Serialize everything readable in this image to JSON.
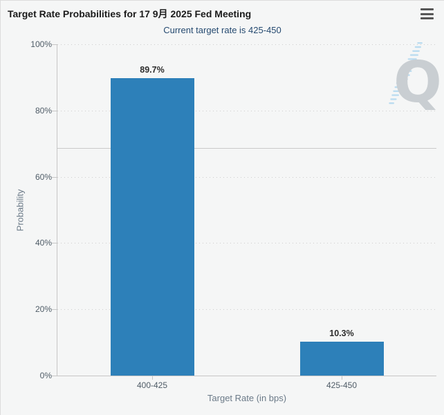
{
  "chart_data": {
    "type": "bar",
    "title": "Target Rate Probabilities for 17 9月 2025 Fed Meeting",
    "subtitle": "Current target rate is 425-450",
    "categories": [
      "400-425",
      "425-450"
    ],
    "values": [
      89.7,
      10.3
    ],
    "data_labels": [
      "89.7%",
      "10.3%"
    ],
    "xlabel": "Target Rate (in bps)",
    "ylabel": "Probability",
    "ylim": [
      0,
      100
    ],
    "yticks": [
      0,
      20,
      40,
      60,
      80,
      100
    ],
    "ytick_labels": [
      "0%",
      "20%",
      "40%",
      "60%",
      "80%",
      "100%"
    ],
    "grid": "dotted",
    "reference_line_pct": 68.7,
    "legend": "none",
    "bar_color": "#2d80b9"
  },
  "watermark": {
    "letter": "Q"
  },
  "colors": {
    "background": "#f5f6f6",
    "bar": "#2d80b9",
    "title": "#1b1b1b",
    "subtitle": "#254a70",
    "axis_line": "#c6c6c6",
    "gridline": "#cdcdcd",
    "reference_line": "#c9c9c9",
    "tick_label": "#4e5b66",
    "axis_title": "#6b7a88",
    "data_label": "#2d2d2d",
    "watermark_q": "#c9ced2",
    "watermark_dash": "#b5d9f0",
    "menu_icon": "#565656"
  }
}
